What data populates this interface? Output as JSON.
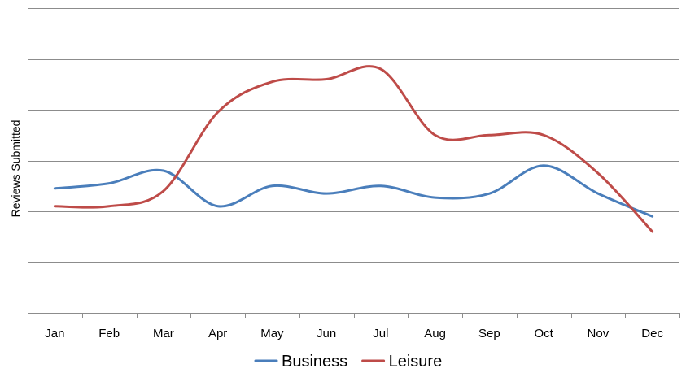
{
  "chart_data": {
    "type": "line",
    "categories": [
      "Jan",
      "Feb",
      "Mar",
      "Apr",
      "May",
      "Jun",
      "Jul",
      "Aug",
      "Sep",
      "Oct",
      "Nov",
      "Dec"
    ],
    "ylabel": "Reviews Submitted",
    "xlabel": "",
    "title": "",
    "ylim": [
      0,
      6
    ],
    "y_gridlines": [
      1,
      2,
      3,
      4,
      5,
      6
    ],
    "y_tick_labels_shown": false,
    "grid": true,
    "legend_position": "bottom",
    "smooth": true,
    "series": [
      {
        "name": "Business",
        "color": "#4a7ebb",
        "values": [
          2.45,
          2.55,
          2.8,
          2.1,
          2.5,
          2.35,
          2.5,
          2.27,
          2.35,
          2.9,
          2.35,
          1.9
        ]
      },
      {
        "name": "Leisure",
        "color": "#be4b48",
        "values": [
          2.1,
          2.1,
          2.4,
          3.95,
          4.55,
          4.6,
          4.8,
          3.5,
          3.5,
          3.5,
          2.75,
          1.6
        ]
      }
    ]
  }
}
